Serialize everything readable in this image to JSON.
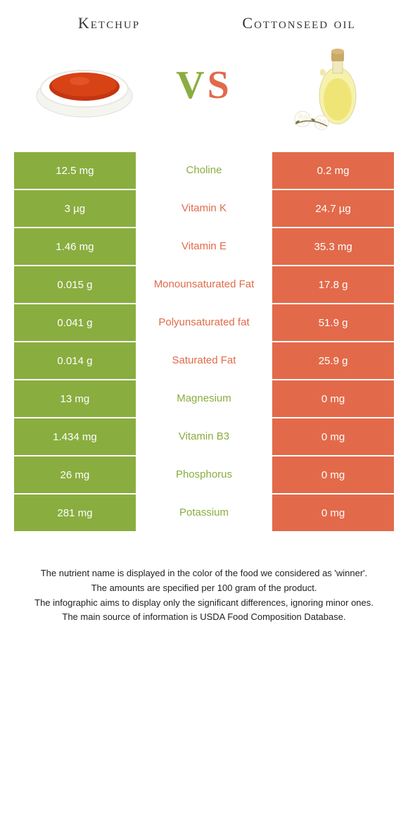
{
  "header": {
    "left_title": "Ketchup",
    "right_title": "Cottonseed oil",
    "vs_v": "V",
    "vs_s": "S"
  },
  "colors": {
    "green": "#8aad3f",
    "orange": "#e26a4a",
    "text": "#333333",
    "white": "#ffffff"
  },
  "rows": [
    {
      "left": "12.5 mg",
      "label": "Choline",
      "right": "0.2 mg",
      "winner": "left"
    },
    {
      "left": "3 µg",
      "label": "Vitamin K",
      "right": "24.7 µg",
      "winner": "right"
    },
    {
      "left": "1.46 mg",
      "label": "Vitamin E",
      "right": "35.3 mg",
      "winner": "right"
    },
    {
      "left": "0.015 g",
      "label": "Monounsaturated Fat",
      "right": "17.8 g",
      "winner": "right"
    },
    {
      "left": "0.041 g",
      "label": "Polyunsaturated fat",
      "right": "51.9 g",
      "winner": "right"
    },
    {
      "left": "0.014 g",
      "label": "Saturated Fat",
      "right": "25.9 g",
      "winner": "right"
    },
    {
      "left": "13 mg",
      "label": "Magnesium",
      "right": "0 mg",
      "winner": "left"
    },
    {
      "left": "1.434 mg",
      "label": "Vitamin B3",
      "right": "0 mg",
      "winner": "left"
    },
    {
      "left": "26 mg",
      "label": "Phosphorus",
      "right": "0 mg",
      "winner": "left"
    },
    {
      "left": "281 mg",
      "label": "Potassium",
      "right": "0 mg",
      "winner": "left"
    }
  ],
  "footer": {
    "line1": "The nutrient name is displayed in the color of the food we considered as 'winner'.",
    "line2": "The amounts are specified per 100 gram of the product.",
    "line3": "The infographic aims to display only the significant differences, ignoring minor ones.",
    "line4": "The main source of information is USDA Food Composition Database."
  }
}
